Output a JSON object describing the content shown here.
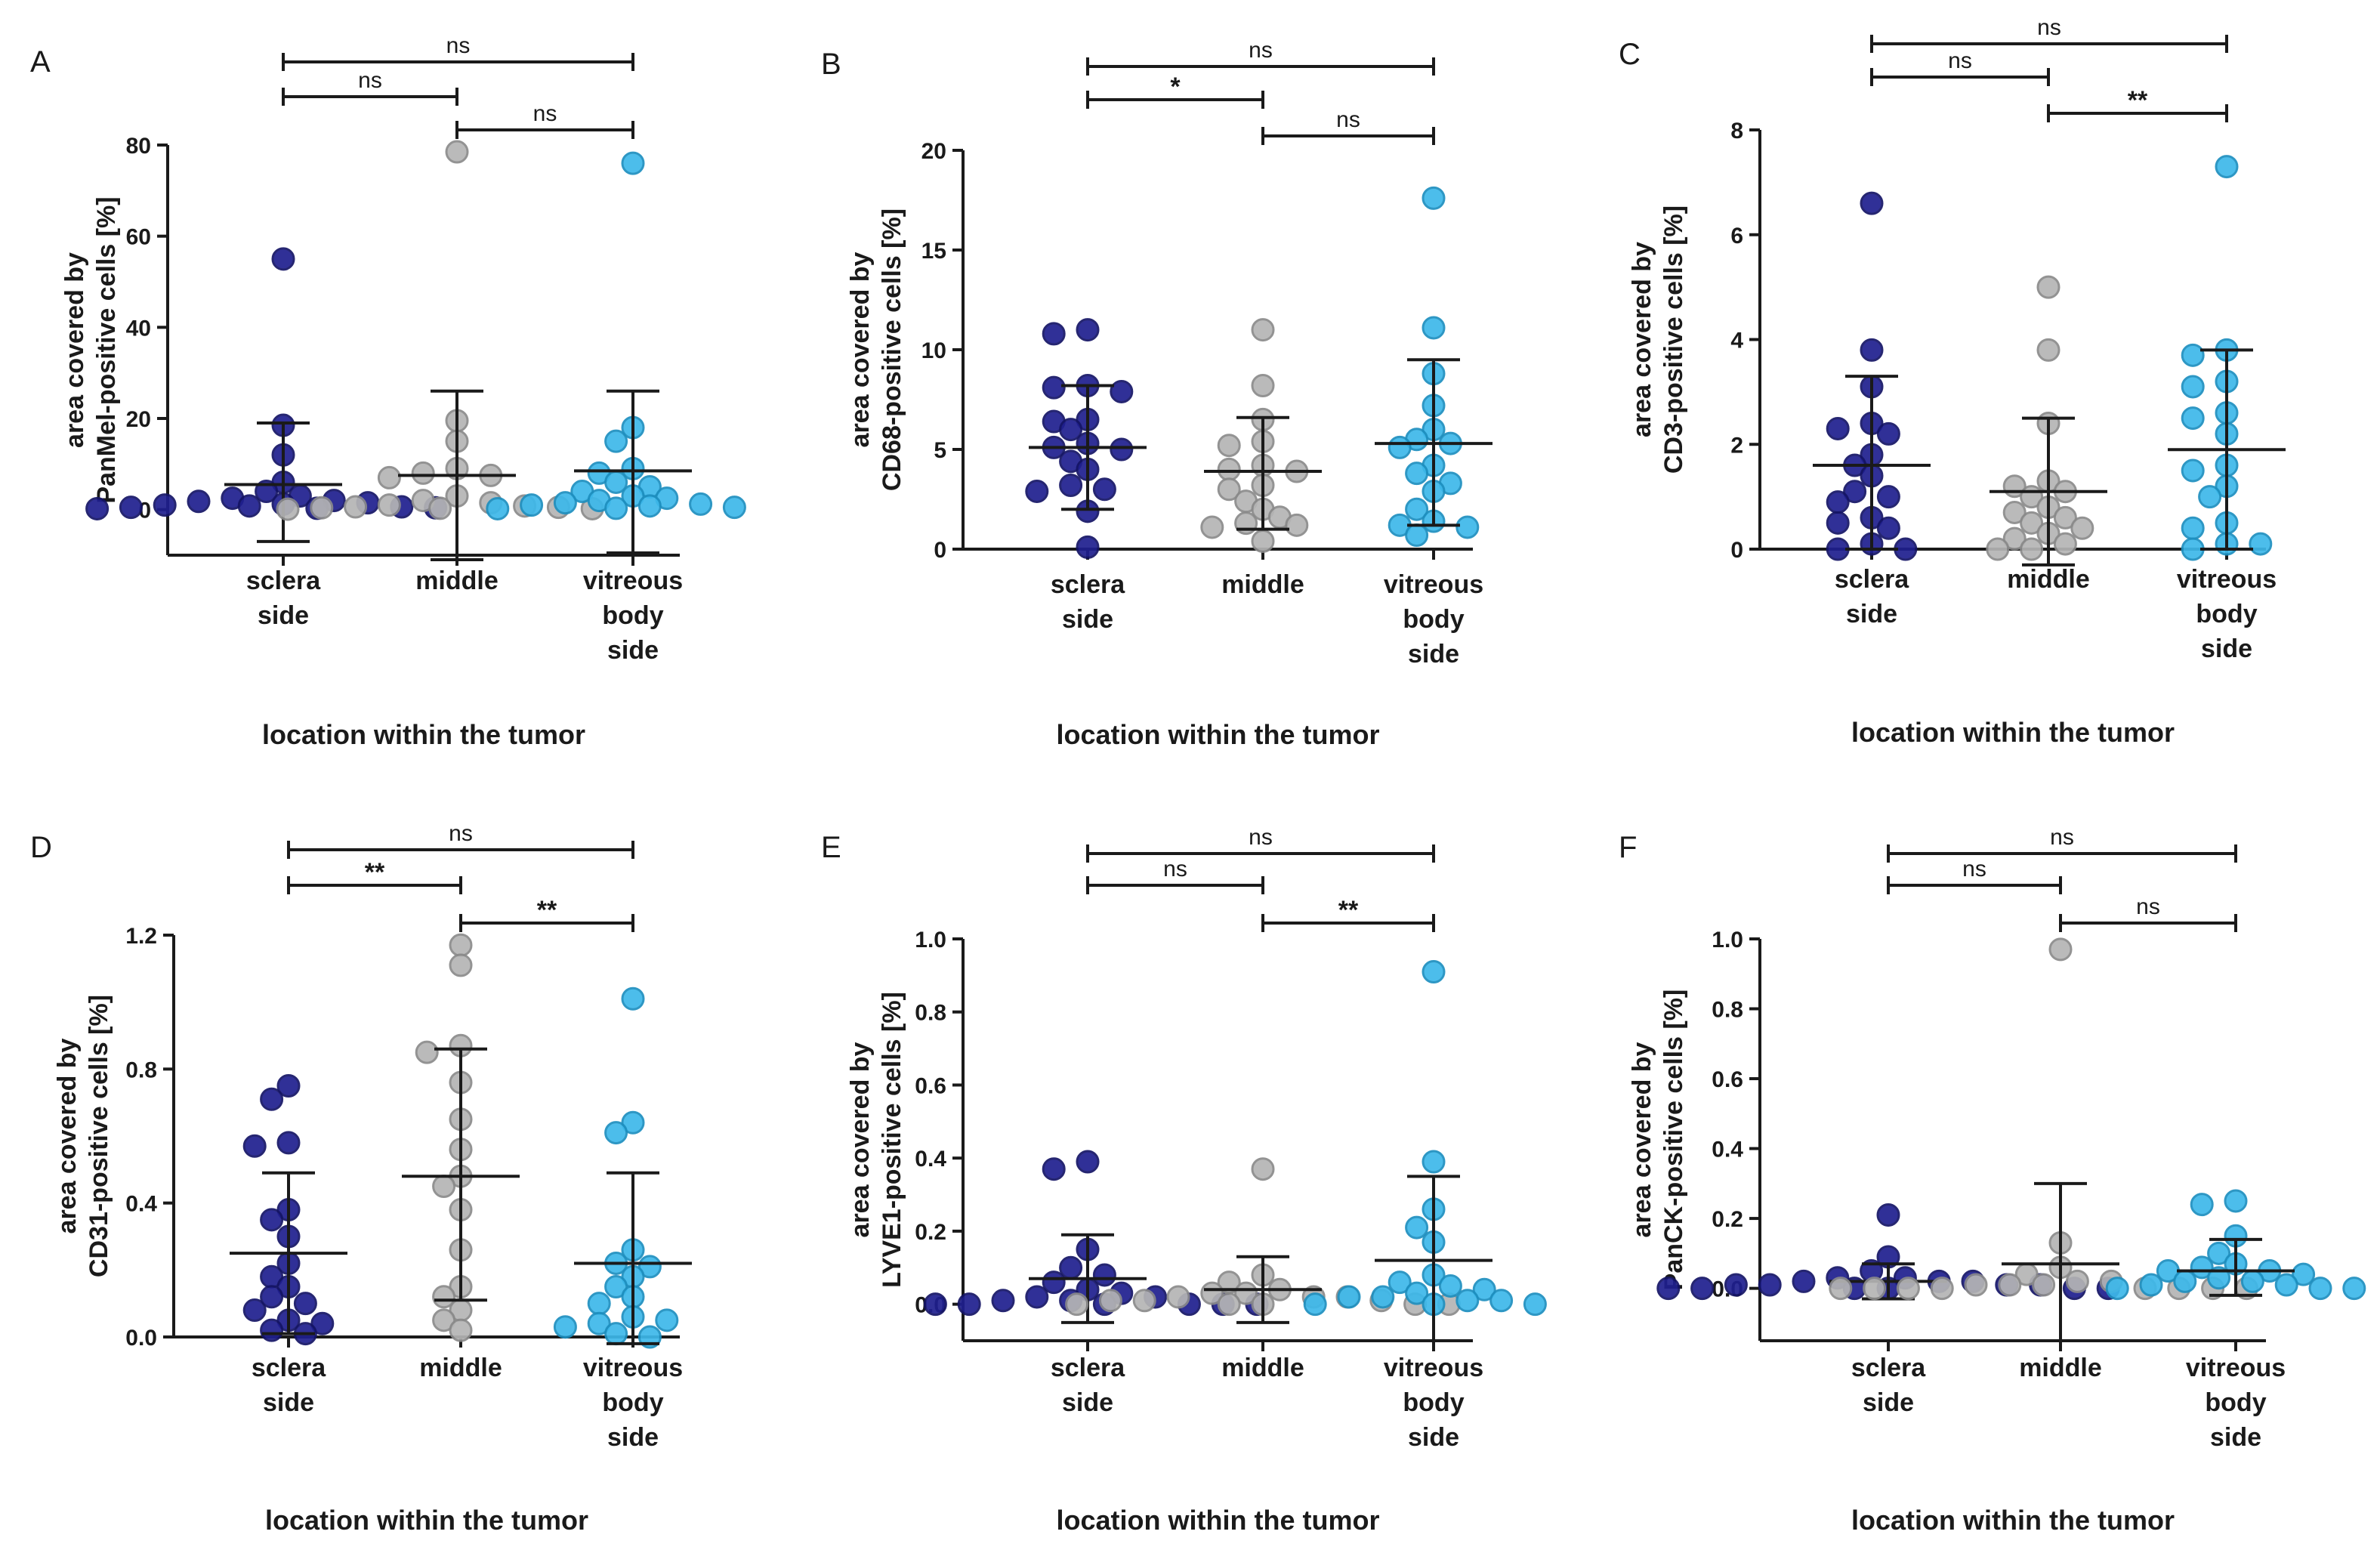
{
  "figure": {
    "group_colors": {
      "sclera_side": "#1f1f8f",
      "middle": "#b5b5b5",
      "vitreous_body_side": "#3db8ea"
    },
    "group_strokes": {
      "sclera_side": "#141466",
      "middle": "#8a8a8a",
      "vitreous_body_side": "#1d8fbf"
    }
  },
  "chart_data": [
    {
      "panel": "A",
      "type": "scatter",
      "ylabel_line1": "area covered by",
      "ylabel_line2": "PanMel-positive cells [%]",
      "xlabel": "location within the tumor",
      "categories": [
        [
          "sclera",
          "side"
        ],
        [
          "middle"
        ],
        [
          "vitreous",
          "body",
          "side"
        ]
      ],
      "ylim": [
        -10,
        80
      ],
      "yticks": [
        0,
        20,
        40,
        60,
        80
      ],
      "series": [
        {
          "name": "sclera side",
          "mean": 5.5,
          "sd_low": -7,
          "sd_high": 19,
          "values": [
            55,
            18.5,
            12,
            6,
            4,
            3,
            2.5,
            2,
            1.8,
            1.5,
            1.2,
            1,
            0.8,
            0.6,
            0.5,
            0.4,
            0.3,
            0.2
          ]
        },
        {
          "name": "middle",
          "mean": 7.5,
          "sd_low": -11,
          "sd_high": 26,
          "values": [
            78.5,
            19.5,
            15,
            9,
            8,
            7.5,
            7,
            3,
            2,
            1.5,
            1,
            0.8,
            0.6,
            0.5,
            0.4,
            0.3,
            0.2,
            0.1
          ]
        },
        {
          "name": "vitreous body side",
          "mean": 8.5,
          "sd_low": -9.5,
          "sd_high": 26,
          "values": [
            76,
            18,
            15,
            9,
            8,
            6,
            5,
            4,
            3,
            2.5,
            2,
            1.5,
            1.2,
            1,
            0.8,
            0.5,
            0.3,
            0.2
          ]
        }
      ],
      "comparisons": [
        {
          "from": 0,
          "to": 2,
          "label": "ns"
        },
        {
          "from": 0,
          "to": 1,
          "label": "ns"
        },
        {
          "from": 1,
          "to": 2,
          "label": "ns"
        }
      ]
    },
    {
      "panel": "B",
      "type": "scatter",
      "ylabel_line1": "area covered by",
      "ylabel_line2": "CD68-positive cells [%]",
      "xlabel": "location within the tumor",
      "categories": [
        [
          "sclera",
          "side"
        ],
        [
          "middle"
        ],
        [
          "vitreous",
          "body",
          "side"
        ]
      ],
      "ylim": [
        0,
        20
      ],
      "yticks": [
        0,
        5,
        10,
        15,
        20
      ],
      "series": [
        {
          "name": "sclera side",
          "mean": 5.1,
          "sd_low": 2,
          "sd_high": 8.2,
          "values": [
            11,
            10.8,
            8.2,
            8.1,
            7.9,
            6.5,
            6.4,
            6,
            5.3,
            5.1,
            5,
            4.4,
            4,
            3.2,
            3,
            2.9,
            1.9,
            0.1
          ]
        },
        {
          "name": "middle",
          "mean": 3.9,
          "sd_low": 1,
          "sd_high": 6.6,
          "values": [
            11,
            8.2,
            6.5,
            5.4,
            5.2,
            4.2,
            4,
            3.9,
            3.2,
            3,
            2.4,
            2,
            1.6,
            1.3,
            1.2,
            1.1,
            0.4
          ]
        },
        {
          "name": "vitreous body side",
          "mean": 5.3,
          "sd_low": 1.2,
          "sd_high": 9.5,
          "values": [
            17.6,
            11.1,
            8.8,
            7.2,
            6,
            5.5,
            5.3,
            5.1,
            4.2,
            3.8,
            3.3,
            2.9,
            2,
            1.4,
            1.2,
            1.1,
            0.7
          ]
        }
      ],
      "comparisons": [
        {
          "from": 0,
          "to": 2,
          "label": "ns"
        },
        {
          "from": 0,
          "to": 1,
          "label": "*"
        },
        {
          "from": 1,
          "to": 2,
          "label": "ns"
        }
      ]
    },
    {
      "panel": "C",
      "type": "scatter",
      "ylabel_line1": "area covered by",
      "ylabel_line2": "CD3-positive cells [%]",
      "xlabel": "location within the tumor",
      "categories": [
        [
          "sclera",
          "side"
        ],
        [
          "middle"
        ],
        [
          "vitreous",
          "body",
          "side"
        ]
      ],
      "ylim": [
        0,
        8
      ],
      "yticks": [
        0,
        2,
        4,
        6,
        8
      ],
      "series": [
        {
          "name": "sclera side",
          "mean": 1.6,
          "sd_low": 0,
          "sd_high": 3.3,
          "values": [
            6.6,
            3.8,
            3.1,
            2.4,
            2.3,
            2.2,
            1.8,
            1.6,
            1.4,
            1.1,
            1,
            0.9,
            0.6,
            0.5,
            0.4,
            0.1,
            0,
            0
          ]
        },
        {
          "name": "middle",
          "mean": 1.1,
          "sd_low": -0.3,
          "sd_high": 2.5,
          "values": [
            5,
            3.8,
            2.4,
            1.3,
            1.2,
            1.1,
            1,
            0.8,
            0.7,
            0.6,
            0.5,
            0.4,
            0.3,
            0.2,
            0.1,
            0,
            0
          ]
        },
        {
          "name": "vitreous body side",
          "mean": 1.9,
          "sd_low": 0,
          "sd_high": 3.8,
          "values": [
            7.3,
            3.8,
            3.7,
            3.2,
            3.1,
            2.6,
            2.5,
            2.2,
            1.6,
            1.5,
            1.2,
            1,
            0.5,
            0.4,
            0.1,
            0.1,
            0
          ]
        }
      ],
      "comparisons": [
        {
          "from": 0,
          "to": 2,
          "label": "ns"
        },
        {
          "from": 0,
          "to": 1,
          "label": "ns"
        },
        {
          "from": 1,
          "to": 2,
          "label": "**"
        }
      ]
    },
    {
      "panel": "D",
      "type": "scatter",
      "ylabel_line1": "area covered by",
      "ylabel_line2": "CD31-positive cells [%]",
      "xlabel": "location within the tumor",
      "categories": [
        [
          "sclera",
          "side"
        ],
        [
          "middle"
        ],
        [
          "vitreous",
          "body",
          "side"
        ]
      ],
      "ylim": [
        0,
        1.2
      ],
      "yticks": [
        "0.0",
        "0.4",
        "0.8",
        "1.2"
      ],
      "series": [
        {
          "name": "sclera side",
          "mean": 0.25,
          "sd_low": 0.01,
          "sd_high": 0.49,
          "values": [
            0.75,
            0.71,
            0.58,
            0.57,
            0.38,
            0.35,
            0.3,
            0.22,
            0.18,
            0.15,
            0.12,
            0.1,
            0.08,
            0.05,
            0.04,
            0.02,
            0.01
          ]
        },
        {
          "name": "middle",
          "mean": 0.48,
          "sd_low": 0.11,
          "sd_high": 0.86,
          "values": [
            1.17,
            1.11,
            0.87,
            0.85,
            0.76,
            0.65,
            0.56,
            0.48,
            0.45,
            0.38,
            0.26,
            0.15,
            0.12,
            0.08,
            0.05,
            0.02
          ]
        },
        {
          "name": "vitreous body side",
          "mean": 0.22,
          "sd_low": -0.02,
          "sd_high": 0.49,
          "values": [
            1.01,
            0.64,
            0.61,
            0.26,
            0.22,
            0.21,
            0.18,
            0.15,
            0.12,
            0.1,
            0.06,
            0.05,
            0.04,
            0.03,
            0.01,
            0
          ]
        }
      ],
      "comparisons": [
        {
          "from": 0,
          "to": 2,
          "label": "ns"
        },
        {
          "from": 0,
          "to": 1,
          "label": "**"
        },
        {
          "from": 1,
          "to": 2,
          "label": "**"
        }
      ]
    },
    {
      "panel": "E",
      "type": "scatter",
      "ylabel_line1": "area covered by",
      "ylabel_line2": "LYVE1-positive cells [%]",
      "xlabel": "location within the tumor",
      "categories": [
        [
          "sclera",
          "side"
        ],
        [
          "middle"
        ],
        [
          "vitreous",
          "body",
          "side"
        ]
      ],
      "ylim": [
        -0.1,
        1.0
      ],
      "yticks": [
        "0.0",
        "0.2",
        "0.4",
        "0.6",
        "0.8",
        "1.0"
      ],
      "series": [
        {
          "name": "sclera side",
          "mean": 0.07,
          "sd_low": -0.05,
          "sd_high": 0.19,
          "values": [
            0.39,
            0.37,
            0.15,
            0.1,
            0.08,
            0.06,
            0.04,
            0.03,
            0.02,
            0.02,
            0.01,
            0.01,
            0,
            0,
            0,
            0,
            0,
            0
          ]
        },
        {
          "name": "middle",
          "mean": 0.04,
          "sd_low": -0.05,
          "sd_high": 0.13,
          "values": [
            0.37,
            0.08,
            0.06,
            0.04,
            0.03,
            0.03,
            0.02,
            0.02,
            0.02,
            0.01,
            0.01,
            0.01,
            0,
            0,
            0,
            0,
            0
          ]
        },
        {
          "name": "vitreous body side",
          "mean": 0.12,
          "sd_low": -0.1,
          "sd_high": 0.35,
          "values": [
            0.91,
            0.39,
            0.26,
            0.21,
            0.17,
            0.08,
            0.06,
            0.05,
            0.04,
            0.03,
            0.02,
            0.02,
            0.01,
            0.01,
            0,
            0,
            0
          ]
        }
      ],
      "comparisons": [
        {
          "from": 0,
          "to": 2,
          "label": "ns"
        },
        {
          "from": 0,
          "to": 1,
          "label": "ns"
        },
        {
          "from": 1,
          "to": 2,
          "label": "**"
        }
      ]
    },
    {
      "panel": "F",
      "type": "scatter",
      "ylabel_line1": "area covered by",
      "ylabel_line2": "PanCK-positive cells [%]",
      "xlabel": "location within the tumor",
      "categories": [
        [
          "sclera",
          "side"
        ],
        [
          "middle"
        ],
        [
          "vitreous",
          "body",
          "side"
        ]
      ],
      "ylim": [
        -0.15,
        1.0
      ],
      "yticks": [
        "0.0",
        "0.2",
        "0.4",
        "0.6",
        "0.8",
        "1.0"
      ],
      "series": [
        {
          "name": "sclera side",
          "mean": 0.02,
          "sd_low": -0.03,
          "sd_high": 0.07,
          "values": [
            0.21,
            0.09,
            0.05,
            0.03,
            0.03,
            0.02,
            0.02,
            0.02,
            0.01,
            0.01,
            0.01,
            0.01,
            0,
            0,
            0,
            0,
            0,
            0
          ]
        },
        {
          "name": "middle",
          "mean": 0.07,
          "sd_low": -0.15,
          "sd_high": 0.3,
          "values": [
            0.97,
            0.13,
            0.06,
            0.04,
            0.02,
            0.02,
            0.01,
            0.01,
            0.01,
            0,
            0,
            0,
            0,
            0,
            0,
            0,
            0
          ]
        },
        {
          "name": "vitreous body side",
          "mean": 0.05,
          "sd_low": -0.02,
          "sd_high": 0.14,
          "values": [
            0.25,
            0.24,
            0.15,
            0.1,
            0.07,
            0.06,
            0.05,
            0.05,
            0.04,
            0.03,
            0.02,
            0.02,
            0.01,
            0.01,
            0,
            0,
            0
          ]
        }
      ],
      "comparisons": [
        {
          "from": 0,
          "to": 2,
          "label": "ns"
        },
        {
          "from": 0,
          "to": 1,
          "label": "ns"
        },
        {
          "from": 1,
          "to": 2,
          "label": "ns"
        }
      ]
    }
  ]
}
